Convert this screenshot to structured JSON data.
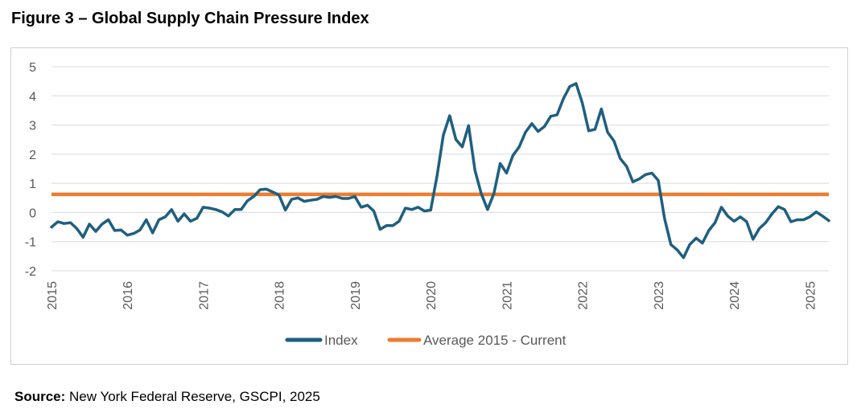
{
  "figure": {
    "title": "Figure 3 – Global Supply Chain Pressure Index",
    "source_label": "Source:",
    "source_text": " New York Federal Reserve, GSCPI, 2025"
  },
  "colors": {
    "index": "#1f5f7f",
    "average": "#ed7d31",
    "grid": "#d9d9d9",
    "axis_text": "#595959"
  },
  "chart_data": {
    "type": "line",
    "title": "Global Supply Chain Pressure Index",
    "xlabel": "",
    "ylabel": "",
    "ylim": [
      -2,
      5
    ],
    "yticks": [
      "5",
      "4",
      "3",
      "2",
      "1",
      "0",
      "-1",
      "-2"
    ],
    "xticks": [
      "2015",
      "2016",
      "2017",
      "2018",
      "2019",
      "2020",
      "2021",
      "2022",
      "2023",
      "2024",
      "2025"
    ],
    "x_start": "2015-01",
    "frequency": "monthly",
    "grid": true,
    "legend_position": "bottom",
    "series": [
      {
        "name": "Index",
        "values": [
          -0.5,
          -0.32,
          -0.38,
          -0.35,
          -0.55,
          -0.85,
          -0.4,
          -0.65,
          -0.4,
          -0.25,
          -0.62,
          -0.6,
          -0.78,
          -0.72,
          -0.6,
          -0.25,
          -0.7,
          -0.25,
          -0.15,
          0.1,
          -0.3,
          -0.05,
          -0.3,
          -0.2,
          0.18,
          0.15,
          0.1,
          0.02,
          -0.12,
          0.1,
          0.1,
          0.4,
          0.55,
          0.78,
          0.8,
          0.7,
          0.6,
          0.08,
          0.45,
          0.5,
          0.38,
          0.42,
          0.45,
          0.55,
          0.52,
          0.55,
          0.48,
          0.48,
          0.55,
          0.18,
          0.25,
          0.05,
          -0.58,
          -0.45,
          -0.45,
          -0.3,
          0.15,
          0.1,
          0.18,
          0.05,
          0.08,
          1.25,
          2.65,
          3.32,
          2.5,
          2.25,
          2.98,
          1.45,
          0.65,
          0.1,
          0.65,
          1.68,
          1.35,
          1.95,
          2.25,
          2.75,
          3.05,
          2.78,
          2.95,
          3.3,
          3.35,
          3.9,
          4.32,
          4.42,
          3.75,
          2.8,
          2.85,
          3.55,
          2.75,
          2.45,
          1.85,
          1.58,
          1.05,
          1.15,
          1.3,
          1.35,
          1.1,
          -0.2,
          -1.1,
          -1.28,
          -1.55,
          -1.1,
          -0.88,
          -1.05,
          -0.62,
          -0.35,
          0.18,
          -0.12,
          -0.3,
          -0.15,
          -0.32,
          -0.92,
          -0.55,
          -0.35,
          -0.05,
          0.2,
          0.1,
          -0.32,
          -0.25,
          -0.25,
          -0.15,
          0.02,
          -0.12,
          -0.28
        ]
      },
      {
        "name": "Average 2015 - Current",
        "values": [
          0.62,
          0.62
        ]
      }
    ]
  }
}
